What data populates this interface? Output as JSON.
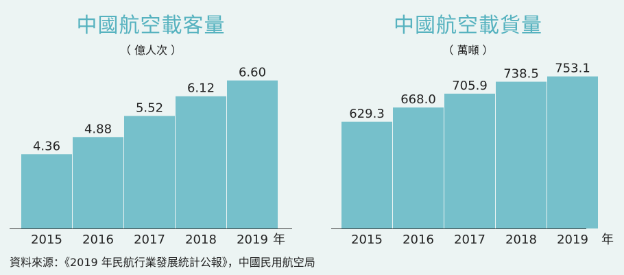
{
  "charts": [
    {
      "title": "中國航空載客量",
      "subtitle": "（ 億人次 ）",
      "unit_label": "年"
    },
    {
      "title": "中國航空載貨量",
      "subtitle": "（ 萬噸 ）",
      "unit_label": "年"
    }
  ],
  "source": "資料來源：《2019 年民航行業發展統計公報》，中國民用航空局",
  "colors": {
    "bar": "#76c0cb",
    "title": "#56b2bf",
    "background": "#ecf4f3",
    "axis": "#333333"
  },
  "chart_data": [
    {
      "type": "bar",
      "title": "中國航空載客量",
      "subtitle": "（ 億人次 ）",
      "xlabel": "年",
      "ylabel": "",
      "categories": [
        "2015",
        "2016",
        "2017",
        "2018",
        "2019"
      ],
      "values": [
        4.36,
        4.88,
        5.52,
        6.12,
        6.6
      ],
      "labels": [
        "4.36",
        "4.88",
        "5.52",
        "6.12",
        "6.60"
      ],
      "baseline": 2.1,
      "ylim": [
        2.1,
        6.8
      ],
      "grid": false
    },
    {
      "type": "bar",
      "title": "中國航空載貨量",
      "subtitle": "（ 萬噸 ）",
      "xlabel": "年",
      "ylabel": "",
      "categories": [
        "2015",
        "2016",
        "2017",
        "2018",
        "2019"
      ],
      "values": [
        629.3,
        668.0,
        705.9,
        738.5,
        753.1
      ],
      "labels": [
        "629.3",
        "668.0",
        "705.9",
        "738.5",
        "753.1"
      ],
      "baseline": 337,
      "ylim": [
        337,
        760
      ],
      "grid": false
    }
  ]
}
